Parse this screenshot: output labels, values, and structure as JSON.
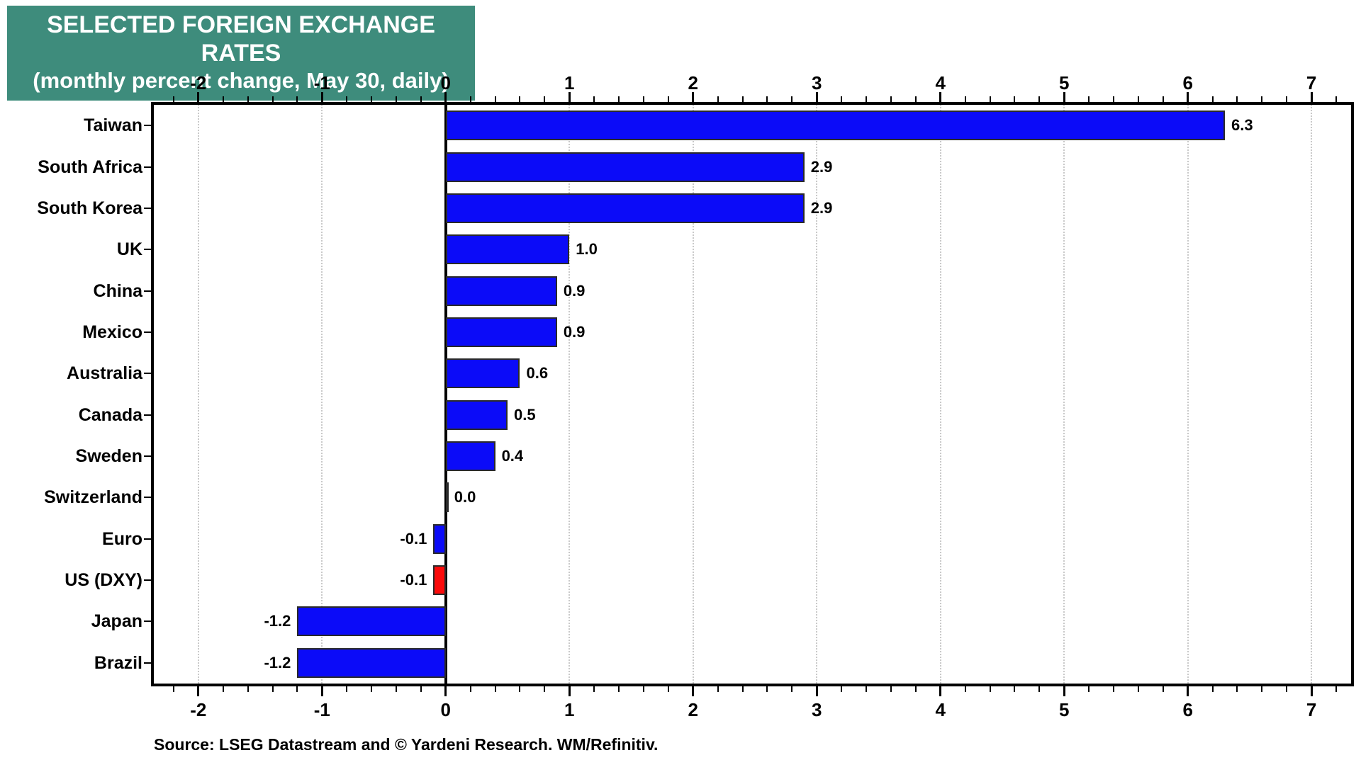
{
  "title": {
    "line1": "SELECTED FOREIGN EXCHANGE RATES",
    "line2": "(monthly percent change, May 30, daily)"
  },
  "source": "Source: LSEG Datastream and © Yardeni Research. WM/Refinitiv.",
  "colors": {
    "title_bg": "#3E8C7C",
    "title_text": "#FFFFFF",
    "bar_blue": "#0B0BF8",
    "bar_red": "#FB0A0A",
    "bar_border": "#2A2A2A",
    "grid": "#C9C9C9",
    "axis": "#000000",
    "text": "#000000"
  },
  "chart_data": {
    "type": "bar",
    "orientation": "horizontal",
    "title": "SELECTED FOREIGN EXCHANGE RATES",
    "subtitle": "(monthly percent change, May 30, daily)",
    "categories": [
      "Taiwan",
      "South Africa",
      "South Korea",
      "UK",
      "China",
      "Mexico",
      "Australia",
      "Canada",
      "Sweden",
      "Switzerland",
      "Euro",
      "US (DXY)",
      "Japan",
      "Brazil"
    ],
    "values": [
      6.3,
      2.9,
      2.9,
      1.0,
      0.9,
      0.9,
      0.6,
      0.5,
      0.4,
      0.0,
      -0.1,
      -0.1,
      -1.2,
      -1.2
    ],
    "value_labels": [
      "6.3",
      "2.9",
      "2.9",
      "1.0",
      "0.9",
      "0.9",
      "0.6",
      "0.5",
      "0.4",
      "0.0",
      "-0.1",
      "-0.1",
      "-1.2",
      "-1.2"
    ],
    "bar_styles": [
      "blue",
      "blue",
      "blue",
      "blue",
      "blue",
      "blue",
      "blue",
      "blue",
      "blue",
      "blue",
      "blue",
      "red",
      "blue",
      "blue"
    ],
    "highlight_category": "US (DXY)",
    "xlim": [
      -2.36,
      7.32
    ],
    "x_major_ticks": [
      -2,
      -1,
      0,
      1,
      2,
      3,
      4,
      5,
      6,
      7
    ],
    "x_tick_labels": [
      "-2",
      "-1",
      "0",
      "1",
      "2",
      "3",
      "4",
      "5",
      "6",
      "7"
    ],
    "x_minor_step": 0.2,
    "grid": "dotted vertical gridlines at integer ticks, solid black line at zero",
    "tick_label_position": "top and bottom",
    "xlabel": "",
    "ylabel": ""
  }
}
